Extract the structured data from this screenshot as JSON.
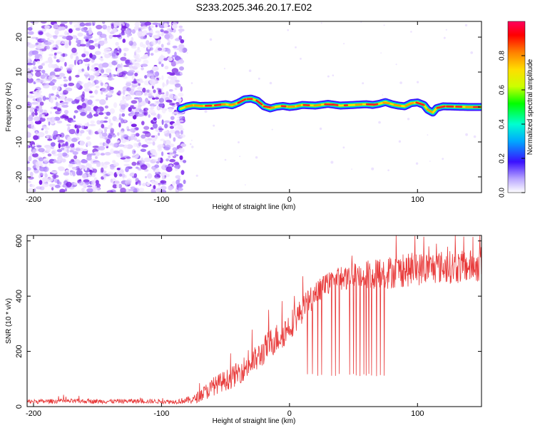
{
  "title": "S233.2025.346.20.17.E02",
  "colors": {
    "trace": "#e83a3a",
    "axis": "#000000",
    "background": "#ffffff",
    "noise": "#8a3cf0"
  },
  "chart_data": [
    {
      "type": "heatmap",
      "xlabel": "Height of straight line (km)",
      "ylabel": "Frequency (Hz)",
      "xlim": [
        -205,
        150
      ],
      "ylim": [
        -24.5,
        24.5
      ],
      "xticks": [
        -200,
        -100,
        0,
        100
      ],
      "xtick_labels": [
        "-200",
        "-100",
        "0",
        "100"
      ],
      "yticks": [
        -20,
        -10,
        0,
        10,
        20
      ],
      "ytick_labels": [
        "-20",
        "-10",
        "0",
        "10",
        "20"
      ],
      "noise_region_x": [
        -205,
        -82
      ],
      "tone_start_x": -85,
      "tone": {
        "x": [
          -85,
          -80,
          -75,
          -70,
          -60,
          -50,
          -45,
          -40,
          -35,
          -30,
          -25,
          -20,
          -15,
          -10,
          -5,
          0,
          5,
          10,
          20,
          30,
          40,
          50,
          60,
          65,
          70,
          75,
          80,
          85,
          90,
          95,
          100,
          105,
          108,
          112,
          115,
          120,
          130,
          140,
          150
        ],
        "y": [
          -0.5,
          0.2,
          0.5,
          0.3,
          0.4,
          0.8,
          0.5,
          1.2,
          2.2,
          2.4,
          1.8,
          0.2,
          -0.4,
          0.1,
          0.3,
          0.0,
          0.2,
          0.6,
          0.4,
          0.9,
          0.4,
          0.6,
          0.8,
          0.6,
          0.9,
          1.4,
          0.8,
          0.4,
          0.2,
          1.1,
          1.3,
          0.6,
          -0.8,
          -1.6,
          -0.3,
          0.2,
          0.1,
          0.0,
          0.0
        ]
      },
      "colorbar": {
        "label": "Normalized spectral amplitude",
        "range": [
          0.0,
          1.0
        ],
        "ticks": [
          0.0,
          0.2,
          0.4,
          0.6,
          0.8
        ],
        "tick_labels": [
          "0.0",
          "0.2",
          "0.4",
          "0.6",
          "0.8"
        ]
      }
    },
    {
      "type": "line",
      "xlabel": "Height of straight line (km)",
      "ylabel": "SNR (10 * v/v)",
      "xlim": [
        -205,
        150
      ],
      "ylim": [
        0,
        620
      ],
      "xticks": [
        -200,
        -100,
        0,
        100
      ],
      "xtick_labels": [
        "-200",
        "-100",
        "0",
        "100"
      ],
      "yticks": [
        0,
        200,
        400,
        600
      ],
      "ytick_labels": [
        "0",
        "200",
        "400",
        "600"
      ],
      "series": [
        {
          "name": "SNR",
          "x": [
            -205,
            -180,
            -150,
            -120,
            -90,
            -75,
            -65,
            -55,
            -45,
            -35,
            -25,
            -15,
            -5,
            5,
            15,
            25,
            35,
            45,
            55,
            65,
            75,
            85,
            95,
            105,
            115,
            125,
            135,
            145,
            150
          ],
          "y": [
            18,
            20,
            19,
            20,
            18,
            25,
            55,
            85,
            105,
            140,
            175,
            230,
            265,
            320,
            380,
            430,
            460,
            470,
            475,
            480,
            485,
            490,
            495,
            500,
            505,
            505,
            505,
            510,
            510
          ],
          "noise": [
            8,
            8,
            8,
            8,
            8,
            15,
            30,
            35,
            40,
            45,
            50,
            55,
            55,
            50,
            45,
            40,
            40,
            45,
            50,
            55,
            60,
            60,
            60,
            60,
            60,
            60,
            60,
            60,
            60
          ]
        }
      ],
      "dropouts_x": [
        14,
        18,
        22,
        25,
        33,
        36,
        39,
        47,
        50,
        52,
        55,
        58,
        60,
        62,
        64,
        68,
        71,
        74
      ],
      "dropout_floor": 110
    }
  ]
}
